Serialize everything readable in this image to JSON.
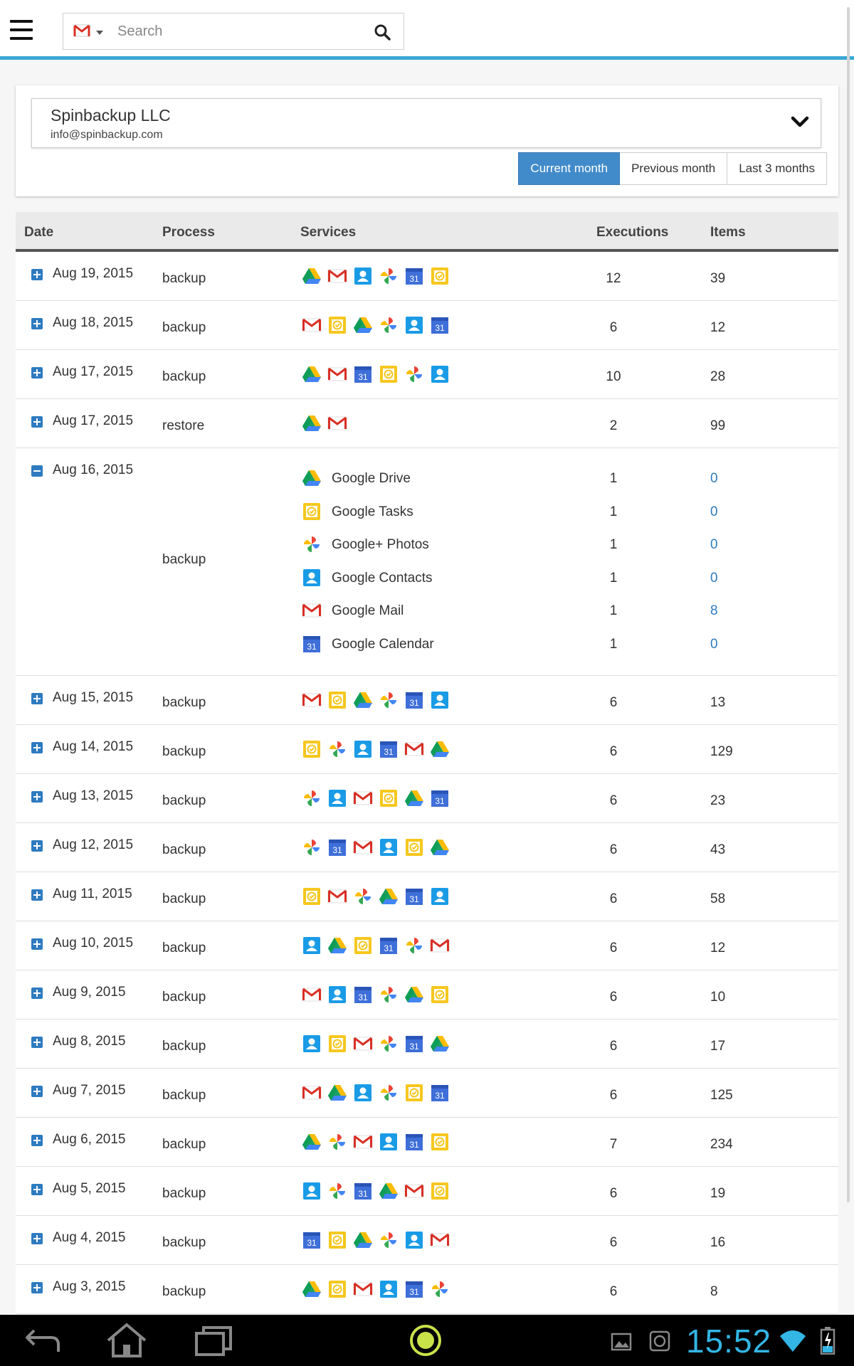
{
  "topbar": {
    "search": {
      "placeholder": "Search",
      "value": ""
    }
  },
  "account": {
    "name": "Spinbackup LLC",
    "email": "info@spinbackup.com"
  },
  "periods": [
    {
      "label": "Current month",
      "active": true
    },
    {
      "label": "Previous month",
      "active": false
    },
    {
      "label": "Last 3 months",
      "active": false
    }
  ],
  "table": {
    "headers": {
      "date": "Date",
      "process": "Process",
      "services": "Services",
      "executions": "Executions",
      "items": "Items"
    },
    "rows": [
      {
        "date": "Aug 19, 2015",
        "process": "backup",
        "services": [
          "drive",
          "gmail",
          "contacts",
          "photos",
          "calendar",
          "tasks"
        ],
        "executions": "12",
        "items": "39"
      },
      {
        "date": "Aug 18, 2015",
        "process": "backup",
        "services": [
          "gmail",
          "tasks",
          "drive",
          "photos",
          "contacts",
          "calendar"
        ],
        "executions": "6",
        "items": "12"
      },
      {
        "date": "Aug 17, 2015",
        "process": "backup",
        "services": [
          "drive",
          "gmail",
          "calendar",
          "tasks",
          "photos",
          "contacts"
        ],
        "executions": "10",
        "items": "28"
      },
      {
        "date": "Aug 17, 2015",
        "process": "restore",
        "services": [
          "drive",
          "gmail"
        ],
        "executions": "2",
        "items": "99"
      },
      {
        "date": "Aug 16, 2015",
        "process": "backup",
        "expanded": true,
        "details": [
          {
            "service": "drive",
            "name": "Google Drive",
            "executions": "1",
            "items": "0"
          },
          {
            "service": "tasks",
            "name": "Google Tasks",
            "executions": "1",
            "items": "0"
          },
          {
            "service": "photos",
            "name": "Google+ Photos",
            "executions": "1",
            "items": "0"
          },
          {
            "service": "contacts",
            "name": "Google Contacts",
            "executions": "1",
            "items": "0"
          },
          {
            "service": "gmail",
            "name": "Google Mail",
            "executions": "1",
            "items": "8"
          },
          {
            "service": "calendar",
            "name": "Google Calendar",
            "executions": "1",
            "items": "0"
          }
        ]
      },
      {
        "date": "Aug 15, 2015",
        "process": "backup",
        "services": [
          "gmail",
          "tasks",
          "drive",
          "photos",
          "calendar",
          "contacts"
        ],
        "executions": "6",
        "items": "13"
      },
      {
        "date": "Aug 14, 2015",
        "process": "backup",
        "services": [
          "tasks",
          "photos",
          "contacts",
          "calendar",
          "gmail",
          "drive"
        ],
        "executions": "6",
        "items": "129"
      },
      {
        "date": "Aug 13, 2015",
        "process": "backup",
        "services": [
          "photos",
          "contacts",
          "gmail",
          "tasks",
          "drive",
          "calendar"
        ],
        "executions": "6",
        "items": "23"
      },
      {
        "date": "Aug 12, 2015",
        "process": "backup",
        "services": [
          "photos",
          "calendar",
          "gmail",
          "contacts",
          "tasks",
          "drive"
        ],
        "executions": "6",
        "items": "43"
      },
      {
        "date": "Aug 11, 2015",
        "process": "backup",
        "services": [
          "tasks",
          "gmail",
          "photos",
          "drive",
          "calendar",
          "contacts"
        ],
        "executions": "6",
        "items": "58"
      },
      {
        "date": "Aug 10, 2015",
        "process": "backup",
        "services": [
          "contacts",
          "drive",
          "tasks",
          "calendar",
          "photos",
          "gmail"
        ],
        "executions": "6",
        "items": "12"
      },
      {
        "date": "Aug 9, 2015",
        "process": "backup",
        "services": [
          "gmail",
          "contacts",
          "calendar",
          "photos",
          "drive",
          "tasks"
        ],
        "executions": "6",
        "items": "10"
      },
      {
        "date": "Aug 8, 2015",
        "process": "backup",
        "services": [
          "contacts",
          "tasks",
          "gmail",
          "photos",
          "calendar",
          "drive"
        ],
        "executions": "6",
        "items": "17"
      },
      {
        "date": "Aug 7, 2015",
        "process": "backup",
        "services": [
          "gmail",
          "drive",
          "contacts",
          "photos",
          "tasks",
          "calendar"
        ],
        "executions": "6",
        "items": "125"
      },
      {
        "date": "Aug 6, 2015",
        "process": "backup",
        "services": [
          "drive",
          "photos",
          "gmail",
          "contacts",
          "calendar",
          "tasks"
        ],
        "executions": "7",
        "items": "234"
      },
      {
        "date": "Aug 5, 2015",
        "process": "backup",
        "services": [
          "contacts",
          "photos",
          "calendar",
          "drive",
          "gmail",
          "tasks"
        ],
        "executions": "6",
        "items": "19"
      },
      {
        "date": "Aug 4, 2015",
        "process": "backup",
        "services": [
          "calendar",
          "tasks",
          "drive",
          "photos",
          "contacts",
          "gmail"
        ],
        "executions": "6",
        "items": "16"
      },
      {
        "date": "Aug 3, 2015",
        "process": "backup",
        "services": [
          "drive",
          "tasks",
          "gmail",
          "contacts",
          "calendar",
          "photos"
        ],
        "executions": "6",
        "items": "8"
      }
    ]
  },
  "system_bar": {
    "time": "15:52"
  },
  "colors": {
    "accent_line": "#3aa7d6",
    "active_button": "#428bca",
    "link": "#2e7bbf",
    "clock": "#33b5e5"
  },
  "icon_names": [
    "menu-icon",
    "gmail-icon",
    "search-icon",
    "chevron-down-icon",
    "expand-icon",
    "collapse-icon",
    "google-drive-icon",
    "gmail-icon",
    "google-contacts-icon",
    "google-photos-icon",
    "google-calendar-icon",
    "google-tasks-icon",
    "back-icon",
    "home-icon",
    "recent-apps-icon",
    "launcher-icon",
    "gallery-icon",
    "wifi-icon",
    "battery-icon"
  ]
}
